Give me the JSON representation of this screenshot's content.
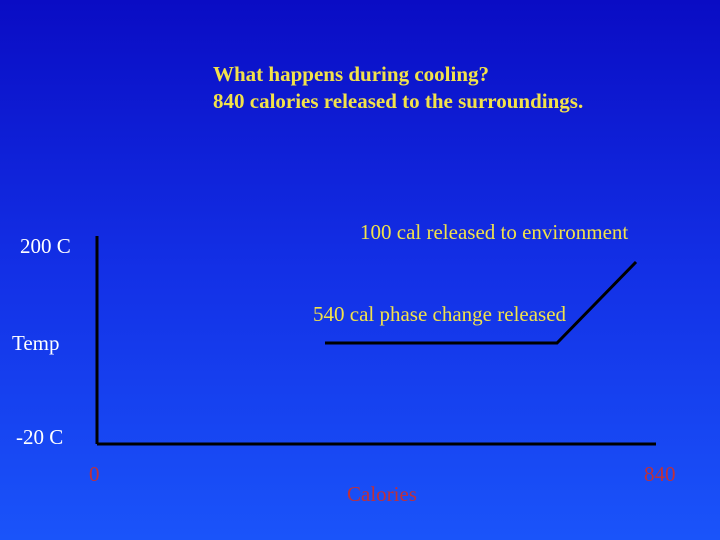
{
  "title": {
    "line1": "What happens during cooling?",
    "line2": "840 calories released to the surroundings."
  },
  "annotations": {
    "upper": "100 cal released to environment",
    "lower": "540 cal phase change released"
  },
  "y_axis": {
    "top_label": "200 C",
    "middle_label": "Temp",
    "bottom_label": "-20 C"
  },
  "x_axis": {
    "start_label": "0",
    "title": "Calories",
    "end_label": "840"
  },
  "colors": {
    "background_top": "#0a0cc4",
    "background_bottom": "#1a54fa",
    "title_text": "#f2e24a",
    "annotation_text": "#f2e24a",
    "axis_text": "#ffffff",
    "x_axis_text": "#c0303a",
    "line": "#000000"
  }
}
